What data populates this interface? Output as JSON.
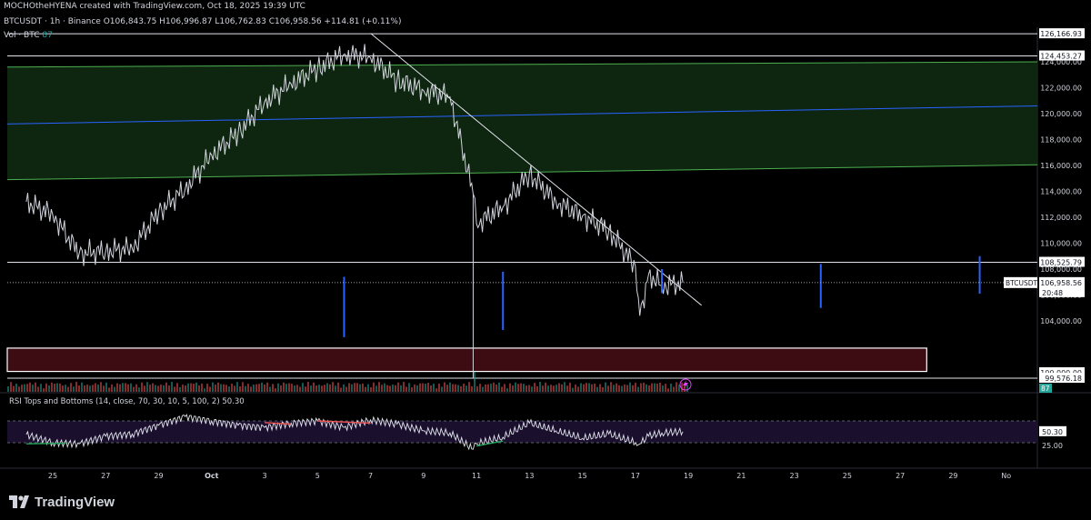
{
  "header": {
    "credit": "MOCHOtheHYENA created with TradingView.com, Oct 18, 2025 19:39 UTC",
    "symbol_line": "BTCUSDT · 1h · Binance  O106,843.75  H106,996.87  L106,762.83  C106,958.56  +114.81 (+0.11%)",
    "vol_label": "Vol · BTC",
    "vol_value": "87"
  },
  "indicator": {
    "rsi_label": "RSI Tops and Bottoms (14, close, 70, 30, 10, 5, 100, 2)",
    "rsi_value": "50.30"
  },
  "brand": {
    "name": "TradingView"
  },
  "colors": {
    "background": "#000000",
    "candles": "#d1d4dc",
    "channel_fill": "#0f2a12",
    "channel_edge": "#4caf50",
    "channel_mid": "#2962ff",
    "vertical_markers": "#2962ff",
    "zone_fill": "#3d0b12",
    "rsi_band": "#1b0f2e",
    "rsi_bull": "#26a65b",
    "rsi_bear": "#ef5350"
  },
  "chart_data": {
    "type": "line",
    "series": [
      {
        "x": [
          "2025-09-24",
          "2025-09-25",
          "2025-09-26",
          "2025-09-27",
          "2025-09-28",
          "2025-09-29",
          "2025-09-30",
          "2025-10-01",
          "2025-10-02",
          "2025-10-03",
          "2025-10-04",
          "2025-10-05",
          "2025-10-06",
          "2025-10-07",
          "2025-10-08",
          "2025-10-09",
          "2025-10-10",
          "2025-10-10 21:00",
          "2025-10-11",
          "2025-10-12",
          "2025-10-13",
          "2025-10-14",
          "2025-10-15",
          "2025-10-16",
          "2025-10-17",
          "2025-10-17 04:00",
          "2025-10-17 12:00",
          "2025-10-18",
          "2025-10-18 19:00"
        ],
        "values": [
          113200,
          112200,
          109200,
          109400,
          109600,
          112400,
          114200,
          116800,
          118500,
          120900,
          122300,
          123500,
          124600,
          124300,
          122600,
          121800,
          121300,
          113800,
          111500,
          112800,
          115400,
          113200,
          112100,
          111000,
          108200,
          104400,
          107600,
          106700,
          106958.56
        ]
      }
    ],
    "price_axis": {
      "ylim": [
        98900,
        127200
      ],
      "ticks": [
        104000,
        106000,
        108000,
        110000,
        112000,
        114000,
        116000,
        118000,
        120000,
        122000,
        124000
      ],
      "tick_labels": [
        "104,000.00",
        "106,000.00",
        "108,000.00",
        "110,000.00",
        "112,000.00",
        "114,000.00",
        "116,000.00",
        "118,000.00",
        "120,000.00",
        "122,000.00",
        "124,000.00"
      ],
      "level_labels": [
        {
          "value": 126166.93,
          "text": "126,166.93"
        },
        {
          "value": 124453.27,
          "text": "124,453.27"
        },
        {
          "value": 108525.79,
          "text": "108,525.79"
        },
        {
          "value": 106958.56,
          "text": "106,958.56",
          "symbol": "BTCUSDT",
          "countdown": "20:48"
        },
        {
          "value": 100000,
          "text": "100,000.00"
        },
        {
          "value": 99576.18,
          "text": "99,576.18"
        }
      ],
      "volume_badge": "87",
      "rsi_ticks": [
        "50.30",
        "25.00"
      ]
    },
    "time_axis": {
      "labels": [
        "25",
        "27",
        "29",
        "Oct",
        "3",
        "5",
        "7",
        "9",
        "11",
        "13",
        "15",
        "17",
        "19",
        "21",
        "23",
        "25",
        "27",
        "29",
        "No"
      ]
    },
    "horizontal_levels": [
      126166.93,
      124453.27,
      108525.79,
      99576.18
    ],
    "channel": {
      "upper": {
        "start": 123600,
        "end": 124000
      },
      "lower": {
        "start": 114900,
        "end": 116050
      },
      "mid": {
        "start": 119200,
        "end": 120600
      }
    },
    "trendline": {
      "from": [
        "2025-10-07",
        126200
      ],
      "to": [
        "2025-10-19 12:00",
        105200
      ]
    },
    "vertical_markers": [
      {
        "date": "2025-10-06",
        "from": 107400,
        "to": 102750
      },
      {
        "date": "2025-10-12",
        "from": 107800,
        "to": 103300
      },
      {
        "date": "2025-10-18",
        "from": 108000,
        "to": 106150
      },
      {
        "date": "2025-10-24",
        "from": 108400,
        "to": 105000
      },
      {
        "date": "2025-10-30",
        "from": 109000,
        "to": 106100
      }
    ],
    "demand_zone": {
      "from": "2025-09-24",
      "to": "2025-10-28",
      "top": 101900,
      "bottom": 100100
    },
    "rsi": {
      "overbought": 70,
      "oversold": 30,
      "current": 50.3,
      "x": [
        "2025-09-24",
        "2025-09-25",
        "2025-09-26",
        "2025-09-27",
        "2025-09-28",
        "2025-09-29",
        "2025-09-30",
        "2025-10-01",
        "2025-10-02",
        "2025-10-03",
        "2025-10-04",
        "2025-10-05",
        "2025-10-06",
        "2025-10-07",
        "2025-10-08",
        "2025-10-09",
        "2025-10-10",
        "2025-10-10 21:00",
        "2025-10-11",
        "2025-10-12",
        "2025-10-13",
        "2025-10-14",
        "2025-10-15",
        "2025-10-16",
        "2025-10-17",
        "2025-10-17 04:00",
        "2025-10-17 12:00",
        "2025-10-18",
        "2025-10-18 19:00"
      ],
      "values": [
        45,
        30,
        28,
        42,
        46,
        62,
        78,
        70,
        62,
        58,
        66,
        70,
        58,
        72,
        64,
        52,
        48,
        18,
        28,
        40,
        66,
        52,
        38,
        46,
        30,
        28,
        42,
        48,
        50.3
      ],
      "divergences": [
        {
          "type": "bullish",
          "from": [
            "2025-09-24",
            28
          ],
          "to": [
            "2025-09-25 12:00",
            29
          ]
        },
        {
          "type": "bearish",
          "from": [
            "2025-10-03",
            67
          ],
          "to": [
            "2025-10-04",
            64
          ]
        },
        {
          "type": "bearish",
          "from": [
            "2025-10-05",
            70
          ],
          "to": [
            "2025-10-07",
            66
          ]
        },
        {
          "type": "bullish",
          "from": [
            "2025-10-11",
            24
          ],
          "to": [
            "2025-10-12",
            33
          ]
        }
      ]
    }
  }
}
